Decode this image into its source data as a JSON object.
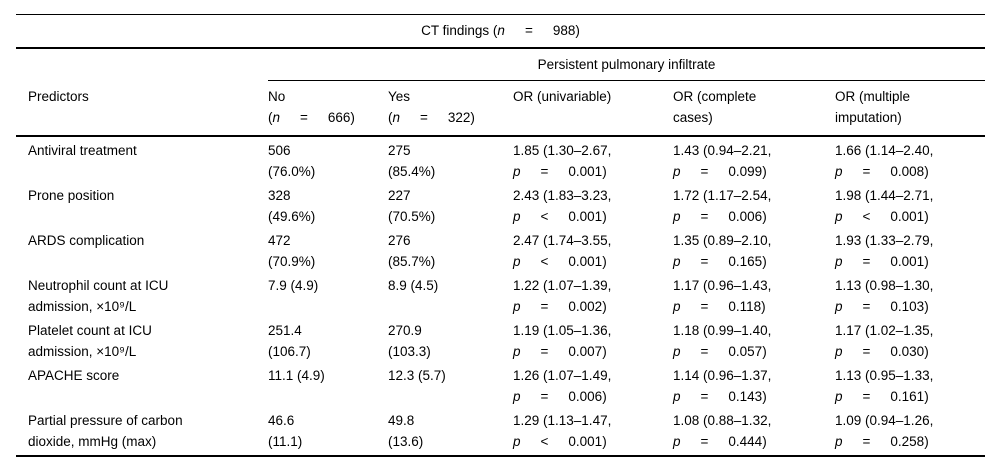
{
  "table": {
    "title": {
      "pre": "CT findings (",
      "it": "n",
      "op": "=",
      "val": "988)"
    },
    "spanner": "Persistent pulmonary infiltrate",
    "columns": [
      {
        "key": "predictors",
        "lines": [
          "Predictors"
        ]
      },
      {
        "key": "no",
        "lines": [
          "No"
        ],
        "n": {
          "pre": "(",
          "it": "n",
          "op": "=",
          "val": "666)"
        }
      },
      {
        "key": "yes",
        "lines": [
          "Yes"
        ],
        "n": {
          "pre": "(",
          "it": "n",
          "op": "=",
          "val": "322)"
        }
      },
      {
        "key": "or-univariable",
        "lines": [
          "OR (univariable)"
        ]
      },
      {
        "key": "or-complete-cases",
        "lines": [
          "OR (complete",
          "cases)"
        ]
      },
      {
        "key": "or-multiple-imputation",
        "lines": [
          "OR (multiple",
          "imputation)"
        ]
      }
    ],
    "rows": [
      {
        "predictor": [
          "Antiviral treatment"
        ],
        "no": [
          "506",
          "(76.0%)"
        ],
        "yes": [
          "275",
          "(85.4%)"
        ],
        "ors": [
          {
            "est": "1.85 (1.30–2.67,",
            "it": "p",
            "op": "=",
            "val": "0.001)"
          },
          {
            "est": "1.43 (0.94–2.21,",
            "it": "p",
            "op": "=",
            "val": "0.099)"
          },
          {
            "est": "1.66 (1.14–2.40,",
            "it": "p",
            "op": "=",
            "val": "0.008)"
          }
        ]
      },
      {
        "predictor": [
          "Prone position"
        ],
        "no": [
          "328",
          "(49.6%)"
        ],
        "yes": [
          "227",
          "(70.5%)"
        ],
        "ors": [
          {
            "est": "2.43 (1.83–3.23,",
            "it": "p",
            "op": "<",
            "val": "0.001)"
          },
          {
            "est": "1.72 (1.17–2.54,",
            "it": "p",
            "op": "=",
            "val": "0.006)"
          },
          {
            "est": "1.98 (1.44–2.71,",
            "it": "p",
            "op": "<",
            "val": "0.001)"
          }
        ]
      },
      {
        "predictor": [
          "ARDS complication"
        ],
        "no": [
          "472",
          "(70.9%)"
        ],
        "yes": [
          "276",
          "(85.7%)"
        ],
        "ors": [
          {
            "est": "2.47 (1.74–3.55,",
            "it": "p",
            "op": "<",
            "val": "0.001)"
          },
          {
            "est": "1.35 (0.89–2.10,",
            "it": "p",
            "op": "=",
            "val": "0.165)"
          },
          {
            "est": "1.93 (1.33–2.79,",
            "it": "p",
            "op": "=",
            "val": "0.001)"
          }
        ]
      },
      {
        "predictor": [
          "Neutrophil count at ICU",
          "admission, ×10⁹/L"
        ],
        "no": [
          "7.9 (4.9)"
        ],
        "yes": [
          "8.9 (4.5)"
        ],
        "ors": [
          {
            "est": "1.22 (1.07–1.39,",
            "it": "p",
            "op": "=",
            "val": "0.002)"
          },
          {
            "est": "1.17 (0.96–1.43,",
            "it": "p",
            "op": "=",
            "val": "0.118)"
          },
          {
            "est": "1.13 (0.98–1.30,",
            "it": "p",
            "op": "=",
            "val": "0.103)"
          }
        ]
      },
      {
        "predictor": [
          "Platelet count at ICU",
          "admission, ×10⁹/L"
        ],
        "no": [
          "251.4",
          "(106.7)"
        ],
        "yes": [
          "270.9",
          "(103.3)"
        ],
        "ors": [
          {
            "est": "1.19 (1.05–1.36,",
            "it": "p",
            "op": "=",
            "val": "0.007)"
          },
          {
            "est": "1.18 (0.99–1.40,",
            "it": "p",
            "op": "=",
            "val": "0.057)"
          },
          {
            "est": "1.17 (1.02–1.35,",
            "it": "p",
            "op": "=",
            "val": "0.030)"
          }
        ]
      },
      {
        "predictor": [
          "APACHE score"
        ],
        "no": [
          "11.1 (4.9)"
        ],
        "yes": [
          "12.3 (5.7)"
        ],
        "ors": [
          {
            "est": "1.26 (1.07–1.49,",
            "it": "p",
            "op": "=",
            "val": "0.006)"
          },
          {
            "est": "1.14 (0.96–1.37,",
            "it": "p",
            "op": "=",
            "val": "0.143)"
          },
          {
            "est": "1.13 (0.95–1.33,",
            "it": "p",
            "op": "=",
            "val": "0.161)"
          }
        ]
      },
      {
        "predictor": [
          "Partial pressure of carbon",
          "dioxide, mmHg (max)"
        ],
        "no": [
          "46.6",
          "(11.1)"
        ],
        "yes": [
          "49.8",
          "(13.6)"
        ],
        "ors": [
          {
            "est": "1.29 (1.13–1.47,",
            "it": "p",
            "op": "<",
            "val": "0.001)"
          },
          {
            "est": "1.08 (0.88–1.32,",
            "it": "p",
            "op": "=",
            "val": "0.444)"
          },
          {
            "est": "1.09 (0.94–1.26,",
            "it": "p",
            "op": "=",
            "val": "0.258)"
          }
        ]
      }
    ]
  }
}
